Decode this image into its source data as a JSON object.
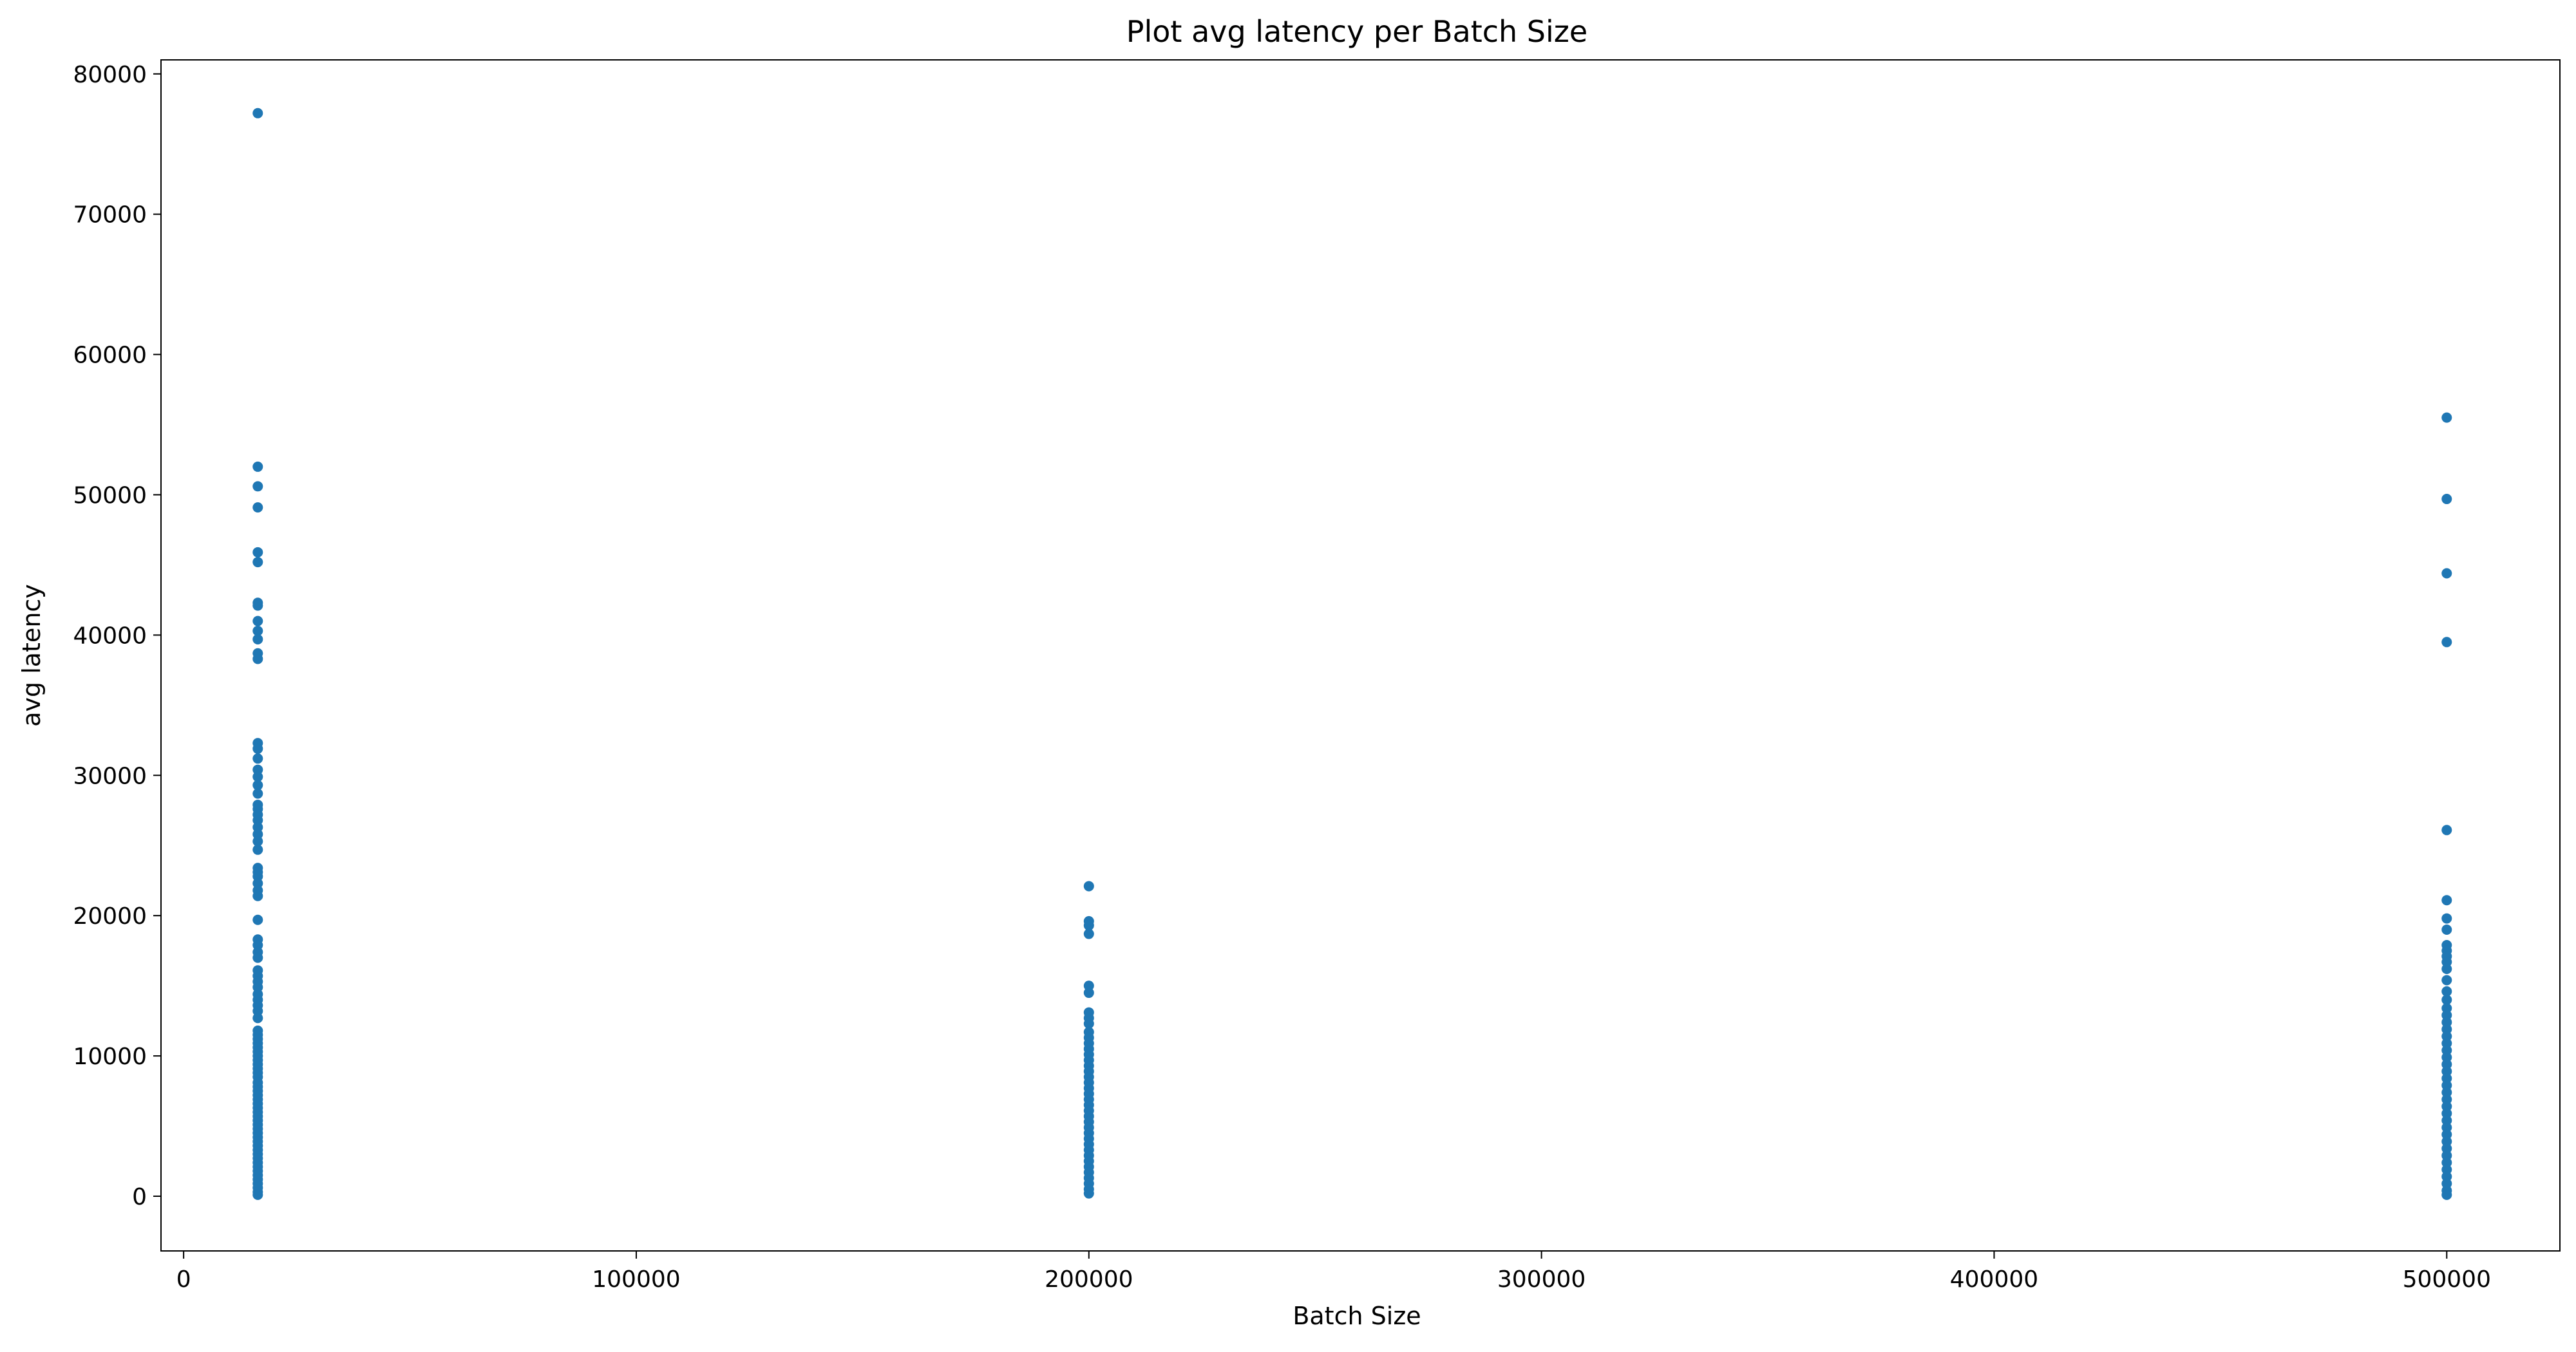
{
  "chart_data": {
    "type": "scatter",
    "title": "Plot avg latency per Batch Size",
    "xlabel": "Batch Size",
    "ylabel": "avg latency",
    "xlim": [
      -5000,
      525000
    ],
    "ylim": [
      -3900,
      81000
    ],
    "xticks": [
      0,
      100000,
      200000,
      300000,
      400000,
      500000
    ],
    "yticks": [
      0,
      10000,
      20000,
      30000,
      40000,
      50000,
      60000,
      70000,
      80000
    ],
    "grid": false,
    "marker_color": "#1f77b4",
    "series": [
      {
        "points": [
          [
            16384,
            77200
          ],
          [
            16384,
            52000
          ],
          [
            16384,
            50600
          ],
          [
            16384,
            49100
          ],
          [
            16384,
            45900
          ],
          [
            16384,
            45200
          ],
          [
            16384,
            42300
          ],
          [
            16384,
            42100
          ],
          [
            16384,
            41000
          ],
          [
            16384,
            40300
          ],
          [
            16384,
            39700
          ],
          [
            16384,
            38700
          ],
          [
            16384,
            38300
          ],
          [
            16384,
            32300
          ],
          [
            16384,
            31900
          ],
          [
            16384,
            31200
          ],
          [
            16384,
            30400
          ],
          [
            16384,
            29900
          ],
          [
            16384,
            29300
          ],
          [
            16384,
            28700
          ],
          [
            16384,
            27900
          ],
          [
            16384,
            27600
          ],
          [
            16384,
            27200
          ],
          [
            16384,
            26800
          ],
          [
            16384,
            26300
          ],
          [
            16384,
            25800
          ],
          [
            16384,
            25300
          ],
          [
            16384,
            24700
          ],
          [
            16384,
            23400
          ],
          [
            16384,
            23100
          ],
          [
            16384,
            22800
          ],
          [
            16384,
            22300
          ],
          [
            16384,
            21800
          ],
          [
            16384,
            21400
          ],
          [
            16384,
            19700
          ],
          [
            16384,
            18300
          ],
          [
            16384,
            17900
          ],
          [
            16384,
            17400
          ],
          [
            16384,
            17000
          ],
          [
            16384,
            16100
          ],
          [
            16384,
            15700
          ],
          [
            16384,
            15300
          ],
          [
            16384,
            14900
          ],
          [
            16384,
            14400
          ],
          [
            16384,
            14000
          ],
          [
            16384,
            13600
          ],
          [
            16384,
            13200
          ],
          [
            16384,
            12700
          ],
          [
            16384,
            11800
          ],
          [
            16384,
            11500
          ],
          [
            16384,
            11200
          ],
          [
            16384,
            10900
          ],
          [
            16384,
            10600
          ],
          [
            16384,
            10300
          ],
          [
            16384,
            10000
          ],
          [
            16384,
            9700
          ],
          [
            16384,
            9400
          ],
          [
            16384,
            9100
          ],
          [
            16384,
            8800
          ],
          [
            16384,
            8500
          ],
          [
            16384,
            8100
          ],
          [
            16384,
            7800
          ],
          [
            16384,
            7500
          ],
          [
            16384,
            7200
          ],
          [
            16384,
            6900
          ],
          [
            16384,
            6600
          ],
          [
            16384,
            6300
          ],
          [
            16384,
            6000
          ],
          [
            16384,
            5700
          ],
          [
            16384,
            5400
          ],
          [
            16384,
            5100
          ],
          [
            16384,
            4800
          ],
          [
            16384,
            4500
          ],
          [
            16384,
            4200
          ],
          [
            16384,
            3900
          ],
          [
            16384,
            3600
          ],
          [
            16384,
            3300
          ],
          [
            16384,
            3000
          ],
          [
            16384,
            2700
          ],
          [
            16384,
            2400
          ],
          [
            16384,
            2100
          ],
          [
            16384,
            1800
          ],
          [
            16384,
            1500
          ],
          [
            16384,
            1200
          ],
          [
            16384,
            900
          ],
          [
            16384,
            600
          ],
          [
            16384,
            300
          ],
          [
            16384,
            100
          ],
          [
            200000,
            22100
          ],
          [
            200000,
            19600
          ],
          [
            200000,
            19300
          ],
          [
            200000,
            18700
          ],
          [
            200000,
            15000
          ],
          [
            200000,
            14500
          ],
          [
            200000,
            13100
          ],
          [
            200000,
            12700
          ],
          [
            200000,
            12300
          ],
          [
            200000,
            11700
          ],
          [
            200000,
            11300
          ],
          [
            200000,
            10900
          ],
          [
            200000,
            10500
          ],
          [
            200000,
            10100
          ],
          [
            200000,
            9700
          ],
          [
            200000,
            9300
          ],
          [
            200000,
            8900
          ],
          [
            200000,
            8500
          ],
          [
            200000,
            8100
          ],
          [
            200000,
            7700
          ],
          [
            200000,
            7300
          ],
          [
            200000,
            6900
          ],
          [
            200000,
            6500
          ],
          [
            200000,
            6100
          ],
          [
            200000,
            5700
          ],
          [
            200000,
            5300
          ],
          [
            200000,
            4900
          ],
          [
            200000,
            4500
          ],
          [
            200000,
            4100
          ],
          [
            200000,
            3700
          ],
          [
            200000,
            3300
          ],
          [
            200000,
            2900
          ],
          [
            200000,
            2500
          ],
          [
            200000,
            2100
          ],
          [
            200000,
            1700
          ],
          [
            200000,
            1300
          ],
          [
            200000,
            900
          ],
          [
            200000,
            500
          ],
          [
            200000,
            200
          ],
          [
            500000,
            55500
          ],
          [
            500000,
            49700
          ],
          [
            500000,
            44400
          ],
          [
            500000,
            39500
          ],
          [
            500000,
            26100
          ],
          [
            500000,
            21100
          ],
          [
            500000,
            19800
          ],
          [
            500000,
            19000
          ],
          [
            500000,
            17900
          ],
          [
            500000,
            17500
          ],
          [
            500000,
            17100
          ],
          [
            500000,
            16700
          ],
          [
            500000,
            16200
          ],
          [
            500000,
            15400
          ],
          [
            500000,
            14600
          ],
          [
            500000,
            14000
          ],
          [
            500000,
            13400
          ],
          [
            500000,
            12900
          ],
          [
            500000,
            12400
          ],
          [
            500000,
            11900
          ],
          [
            500000,
            11400
          ],
          [
            500000,
            10900
          ],
          [
            500000,
            10400
          ],
          [
            500000,
            9900
          ],
          [
            500000,
            9400
          ],
          [
            500000,
            8900
          ],
          [
            500000,
            8400
          ],
          [
            500000,
            7900
          ],
          [
            500000,
            7400
          ],
          [
            500000,
            6900
          ],
          [
            500000,
            6400
          ],
          [
            500000,
            5900
          ],
          [
            500000,
            5400
          ],
          [
            500000,
            4900
          ],
          [
            500000,
            4400
          ],
          [
            500000,
            3900
          ],
          [
            500000,
            3400
          ],
          [
            500000,
            2900
          ],
          [
            500000,
            2400
          ],
          [
            500000,
            1900
          ],
          [
            500000,
            1400
          ],
          [
            500000,
            900
          ],
          [
            500000,
            400
          ],
          [
            500000,
            100
          ]
        ]
      }
    ]
  }
}
